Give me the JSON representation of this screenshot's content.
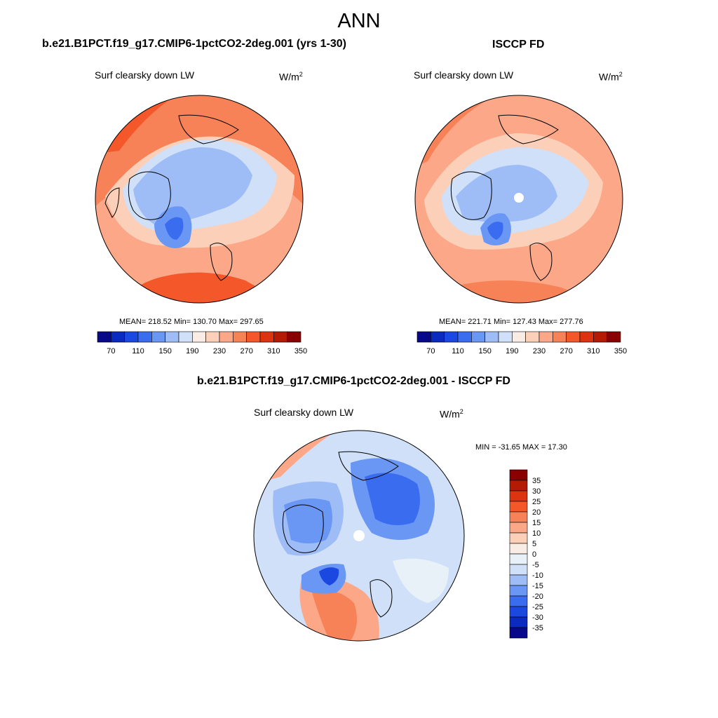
{
  "main_title": "ANN",
  "panels": [
    {
      "title": "b.e21.B1PCT.f19_g17.CMIP6-1pctCO2-2deg.001 (yrs 1-30)",
      "variable": "Surf clearsky down LW",
      "units_base": "W/m",
      "units_exp": "2",
      "stats": "MEAN= 218.52  Min= 130.70  Max= 297.65"
    },
    {
      "title": "ISCCP FD",
      "variable": "Surf clearsky down LW",
      "units_base": "W/m",
      "units_exp": "2",
      "stats": "MEAN= 221.71  Min= 127.43  Max= 277.76"
    },
    {
      "title": "b.e21.B1PCT.f19_g17.CMIP6-1pctCO2-2deg.001 - ISCCP FD",
      "variable": "Surf clearsky down LW",
      "units_base": "W/m",
      "units_exp": "2",
      "stats": "MIN = -31.65 MAX =  17.30"
    }
  ],
  "colorbar_abs": {
    "colors": [
      "#08088a",
      "#0a2ac0",
      "#1a48e0",
      "#3a6cf0",
      "#6a96f4",
      "#9ebcf6",
      "#cfe0f8",
      "#f8ece4",
      "#fcd0b8",
      "#fca888",
      "#f88258",
      "#f4582a",
      "#dc3410",
      "#b41a04",
      "#8a0000"
    ],
    "tick_labels": [
      "70",
      "110",
      "150",
      "190",
      "230",
      "270",
      "310",
      "350"
    ]
  },
  "colorbar_diff": {
    "colors": [
      "#8a0000",
      "#b41a04",
      "#dc3410",
      "#f4582a",
      "#f88258",
      "#fca888",
      "#fcd0b8",
      "#f8ece4",
      "#e8f0f8",
      "#cfe0f8",
      "#9ebcf6",
      "#6a96f4",
      "#3a6cf0",
      "#1a48e0",
      "#0a2ac0",
      "#08088a"
    ],
    "tick_labels": [
      "35",
      "30",
      "25",
      "20",
      "15",
      "10",
      "5",
      "0",
      "-5",
      "-10",
      "-15",
      "-20",
      "-25",
      "-30",
      "-35"
    ]
  }
}
